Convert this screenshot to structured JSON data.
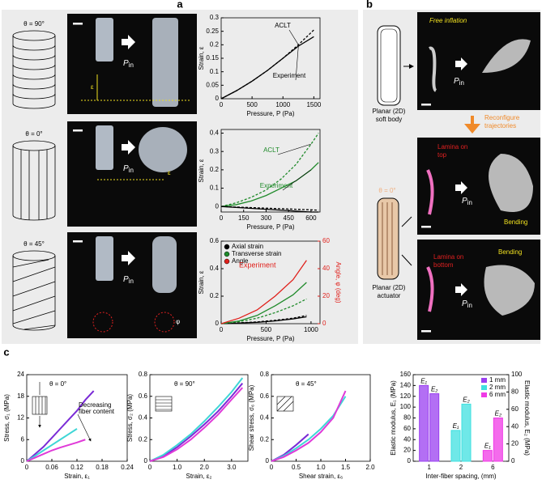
{
  "panel_labels": [
    "a",
    "b",
    "c"
  ],
  "panel_a": {
    "angles": [
      "θ = 90°",
      "θ = 0°",
      "θ = 45°"
    ],
    "pin": {
      "p": "P",
      "sub": "in"
    },
    "strain_symbol": "ε",
    "angle_symbol": "φ"
  },
  "panel_b": {
    "free_inflation": "Free inflation",
    "soft_body": [
      "Planar (2D)",
      "soft body"
    ],
    "reconfigure": [
      "Reconfigure",
      "trajectories"
    ],
    "angle": "θ = 0°",
    "actuator": [
      "Planar (2D)",
      "actuator"
    ],
    "lamina_top": [
      "Lamina on",
      "top"
    ],
    "lamina_bottom": [
      "Lamina on",
      "bottom"
    ],
    "bending": "Bending"
  },
  "chart_data": [
    {
      "type": "line",
      "xlabel": "Pressure, P (Pa)",
      "ylabel": "Strain, ε",
      "legend": "inline",
      "xlim": [
        0,
        1600
      ],
      "xticks": [
        0,
        500,
        1000,
        1500
      ],
      "ylim": [
        0,
        0.3
      ],
      "yticks": [
        0,
        0.05,
        0.1,
        0.15,
        0.2,
        0.25,
        0.3
      ],
      "x": [
        0,
        250,
        500,
        750,
        1000,
        1250,
        1500
      ],
      "series": [
        {
          "name": "ACLT",
          "color": "#000000",
          "dashed": true,
          "values": [
            0,
            0.03,
            0.065,
            0.105,
            0.15,
            0.2,
            0.255
          ]
        },
        {
          "name": "Experiment",
          "color": "#000000",
          "values": [
            0,
            0.03,
            0.065,
            0.105,
            0.15,
            0.195,
            0.23
          ]
        }
      ]
    },
    {
      "type": "line",
      "xlabel": "Pressure, P (Pa)",
      "ylabel": "Strain, ε",
      "legend": "inline",
      "xlim": [
        0,
        660
      ],
      "xticks": [
        0,
        150,
        300,
        450,
        600
      ],
      "ylim": [
        -0.03,
        0.42
      ],
      "yticks": [
        0,
        0.1,
        0.2,
        0.3,
        0.4
      ],
      "x": [
        0,
        100,
        200,
        300,
        400,
        500,
        600,
        650
      ],
      "series": [
        {
          "name": "ACLT",
          "color": "#1f8a2a",
          "dashed": true,
          "values": [
            0,
            0.02,
            0.05,
            0.09,
            0.15,
            0.23,
            0.34,
            0.4
          ]
        },
        {
          "name": "Experiment",
          "color": "#1f8a2a",
          "values": [
            0,
            0.01,
            0.03,
            0.06,
            0.1,
            0.14,
            0.2,
            0.24
          ]
        },
        {
          "color": "#000000",
          "dashed": true,
          "values": [
            0,
            -0.003,
            -0.006,
            -0.009,
            -0.012,
            -0.015,
            -0.018,
            -0.02
          ]
        },
        {
          "color": "#000000",
          "values": [
            0,
            -0.005,
            -0.01,
            -0.015,
            -0.02,
            -0.025,
            -0.03,
            -0.03
          ]
        }
      ]
    },
    {
      "type": "line",
      "xlabel": "Pressure, P (Pa)",
      "ylabel": "Strain, ε",
      "y2label": "Angle, φ (deg)",
      "legend": "upper left",
      "annotations": [
        "Experiment"
      ],
      "xlim": [
        0,
        1100
      ],
      "xticks": [
        0,
        500,
        1000
      ],
      "ylim": [
        0,
        0.6
      ],
      "yticks": [
        0,
        0.2,
        0.4,
        0.6
      ],
      "y2lim": [
        0,
        60
      ],
      "y2ticks": [
        0,
        20,
        40,
        60
      ],
      "x": [
        0,
        200,
        400,
        600,
        800,
        950
      ],
      "series": [
        {
          "name": "Axial strain",
          "color": "#000000",
          "values": [
            0,
            0.005,
            0.01,
            0.02,
            0.035,
            0.05
          ]
        },
        {
          "color": "#000000",
          "dashed": true,
          "values": [
            0,
            0.006,
            0.013,
            0.025,
            0.04,
            0.06
          ]
        },
        {
          "name": "Transverse strain",
          "color": "#1f8a2a",
          "values": [
            0,
            0.02,
            0.06,
            0.13,
            0.21,
            0.3
          ]
        },
        {
          "color": "#1f8a2a",
          "dashed": true,
          "values": [
            0,
            0.015,
            0.04,
            0.08,
            0.13,
            0.18
          ]
        },
        {
          "name": "Angle",
          "color": "#e0201b",
          "axis": "y2",
          "values": [
            0,
            4,
            10,
            20,
            32,
            46
          ]
        }
      ]
    },
    {
      "type": "line",
      "xlabel": "Strain, ε₁",
      "ylabel": "Stress, σ₁ (MPa)",
      "annotations": [
        "θ = 0°",
        "Decreasing",
        "fiber content"
      ],
      "xlim": [
        0,
        0.24
      ],
      "xticks": [
        0,
        0.06,
        0.12,
        0.18,
        0.24
      ],
      "ylim": [
        0,
        24
      ],
      "yticks": [
        0,
        6,
        12,
        18,
        24
      ],
      "x": [
        0,
        0.02,
        0.04,
        0.06,
        0.08,
        0.1,
        0.12,
        0.14,
        0.16
      ],
      "series": [
        {
          "color": "#7a2bd6",
          "values": [
            0,
            2,
            4,
            6.5,
            9,
            11.5,
            14,
            17,
            19.5
          ]
        },
        {
          "color": "#3fd6d6",
          "values": [
            0,
            1.5,
            3,
            4.5,
            6,
            7.5,
            9,
            null,
            null
          ]
        },
        {
          "color": "#e03ad8",
          "values": [
            0,
            1,
            2,
            3,
            3.8,
            4.5,
            5.2,
            6,
            null
          ]
        }
      ]
    },
    {
      "type": "line",
      "xlabel": "Strain, ε₂",
      "ylabel": "Stress, σ₂ (MPa)",
      "annotations": [
        "θ = 90°"
      ],
      "xlim": [
        0,
        3.6
      ],
      "xticks": [
        0,
        {
          "value": 1,
          "label": "1.0"
        },
        {
          "value": 2,
          "label": "2.0"
        },
        {
          "value": 3,
          "label": "3.0"
        }
      ],
      "ylim": [
        0,
        0.8
      ],
      "yticks": [
        0,
        0.2,
        0.4,
        0.6,
        0.8
      ],
      "x": [
        0,
        0.5,
        1,
        1.5,
        2,
        2.5,
        3,
        3.4
      ],
      "series": [
        {
          "color": "#7a2bd6",
          "values": [
            0,
            0.05,
            0.13,
            0.23,
            0.34,
            0.46,
            0.6,
            0.72
          ]
        },
        {
          "color": "#3fd6d6",
          "values": [
            0,
            0.06,
            0.15,
            0.25,
            0.37,
            0.5,
            0.64,
            0.77
          ]
        },
        {
          "color": "#e03ad8",
          "values": [
            0,
            0.04,
            0.11,
            0.2,
            0.31,
            0.43,
            0.57,
            0.68
          ]
        }
      ]
    },
    {
      "type": "line",
      "xlabel": "Shear strain, ε₆",
      "ylabel": "Shear stress, σ₆ (MPa)",
      "annotations": [
        "θ = 45°"
      ],
      "xlim": [
        0,
        2
      ],
      "xticks": [
        0,
        0.5,
        {
          "value": 1,
          "label": "1.0"
        },
        1.5,
        {
          "value": 2,
          "label": "2.0"
        }
      ],
      "ylim": [
        0,
        0.8
      ],
      "yticks": [
        0,
        0.2,
        0.4,
        0.6,
        0.8
      ],
      "x": [
        0,
        0.25,
        0.5,
        0.75,
        1,
        1.25,
        1.5
      ],
      "series": [
        {
          "color": "#7a2bd6",
          "values": [
            0,
            0.06,
            0.15,
            0.25,
            null,
            null,
            null
          ]
        },
        {
          "color": "#3fd6d6",
          "values": [
            0,
            0.05,
            0.12,
            0.2,
            0.3,
            0.42,
            0.6
          ]
        },
        {
          "color": "#e03ad8",
          "values": [
            0,
            0.04,
            0.1,
            0.17,
            0.27,
            0.4,
            0.65
          ]
        }
      ]
    },
    {
      "type": "bar",
      "xlabel": "Inter-fiber spacing, (mm)",
      "ylabel": "Elastic modulus, E₁ (MPa)",
      "y2label": "Elastic modulus, E₂ (MPa)",
      "legend": "upper right",
      "categories": [
        "1",
        "2",
        "6"
      ],
      "category_colors": [
        "#9a3ff0",
        "#3fe0e0",
        "#f03ae6"
      ],
      "legend_labels": [
        "1 mm",
        "2 mm",
        "6 mm"
      ],
      "ylim": [
        0,
        160
      ],
      "yticks": [
        0,
        20,
        40,
        60,
        80,
        100,
        120,
        140,
        160
      ],
      "y2lim": [
        0,
        100
      ],
      "y2ticks": [
        0,
        20,
        40,
        60,
        80,
        100
      ],
      "series": [
        {
          "name": "E₁",
          "values": [
            140,
            57,
            20
          ]
        },
        {
          "name": "E₂",
          "axis": "y2",
          "values": [
            78,
            66,
            50
          ]
        }
      ]
    }
  ]
}
